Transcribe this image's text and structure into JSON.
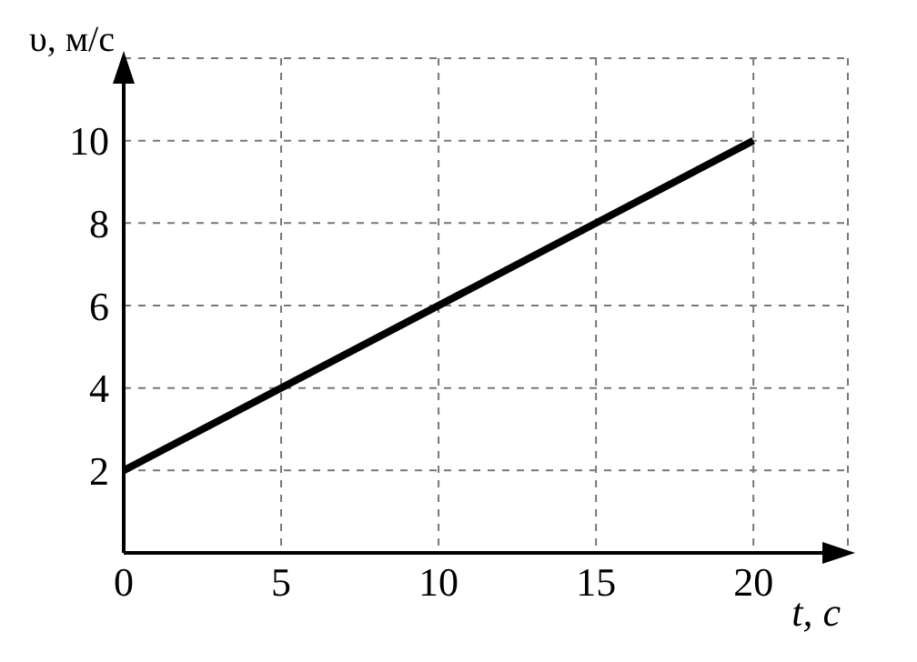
{
  "chart_data": {
    "type": "line",
    "xlabel": "t, с",
    "ylabel": "υ, м/с",
    "x": [
      0,
      20
    ],
    "series": [
      {
        "color": "#000000",
        "values": [
          2,
          10
        ]
      }
    ],
    "xlim": [
      0,
      23
    ],
    "ylim": [
      0,
      12
    ],
    "xticks": [
      0,
      5,
      10,
      15,
      20
    ],
    "yticks": [
      2,
      4,
      6,
      8,
      10
    ],
    "grid": true,
    "marker": "none",
    "line_style": "solid"
  }
}
